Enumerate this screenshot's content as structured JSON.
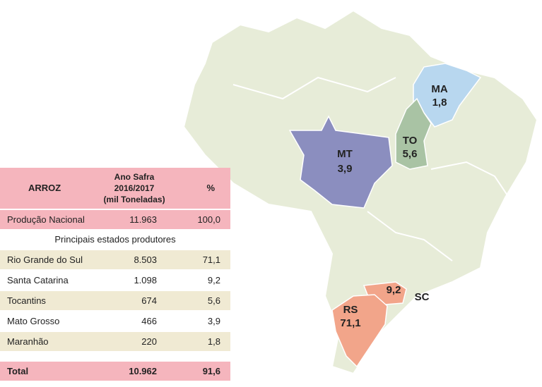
{
  "table": {
    "header": [
      "ARROZ",
      [
        "Ano Safra",
        "2016/2017",
        "(mil Toneladas)"
      ],
      "%"
    ],
    "national": [
      "Produção Nacional",
      "11.963",
      "100,0"
    ],
    "subheader": "Principais estados produtores",
    "rows": [
      [
        "Rio Grande do Sul",
        "8.503",
        "71,1"
      ],
      [
        "Santa Catarina",
        "1.098",
        "9,2"
      ],
      [
        "Tocantins",
        "674",
        "5,6"
      ],
      [
        "Mato Grosso",
        "466",
        "3,9"
      ],
      [
        "Maranhão",
        "220",
        "1,8"
      ]
    ],
    "total": [
      "Total",
      "10.962",
      "91,6"
    ]
  },
  "map": {
    "states": [
      {
        "code": "MA",
        "value": "1,8"
      },
      {
        "code": "TO",
        "value": "5,6"
      },
      {
        "code": "MT",
        "value": "3,9"
      },
      {
        "code": "RS",
        "value": "71,1"
      },
      {
        "code": "SC",
        "value": "9,2"
      }
    ]
  }
}
